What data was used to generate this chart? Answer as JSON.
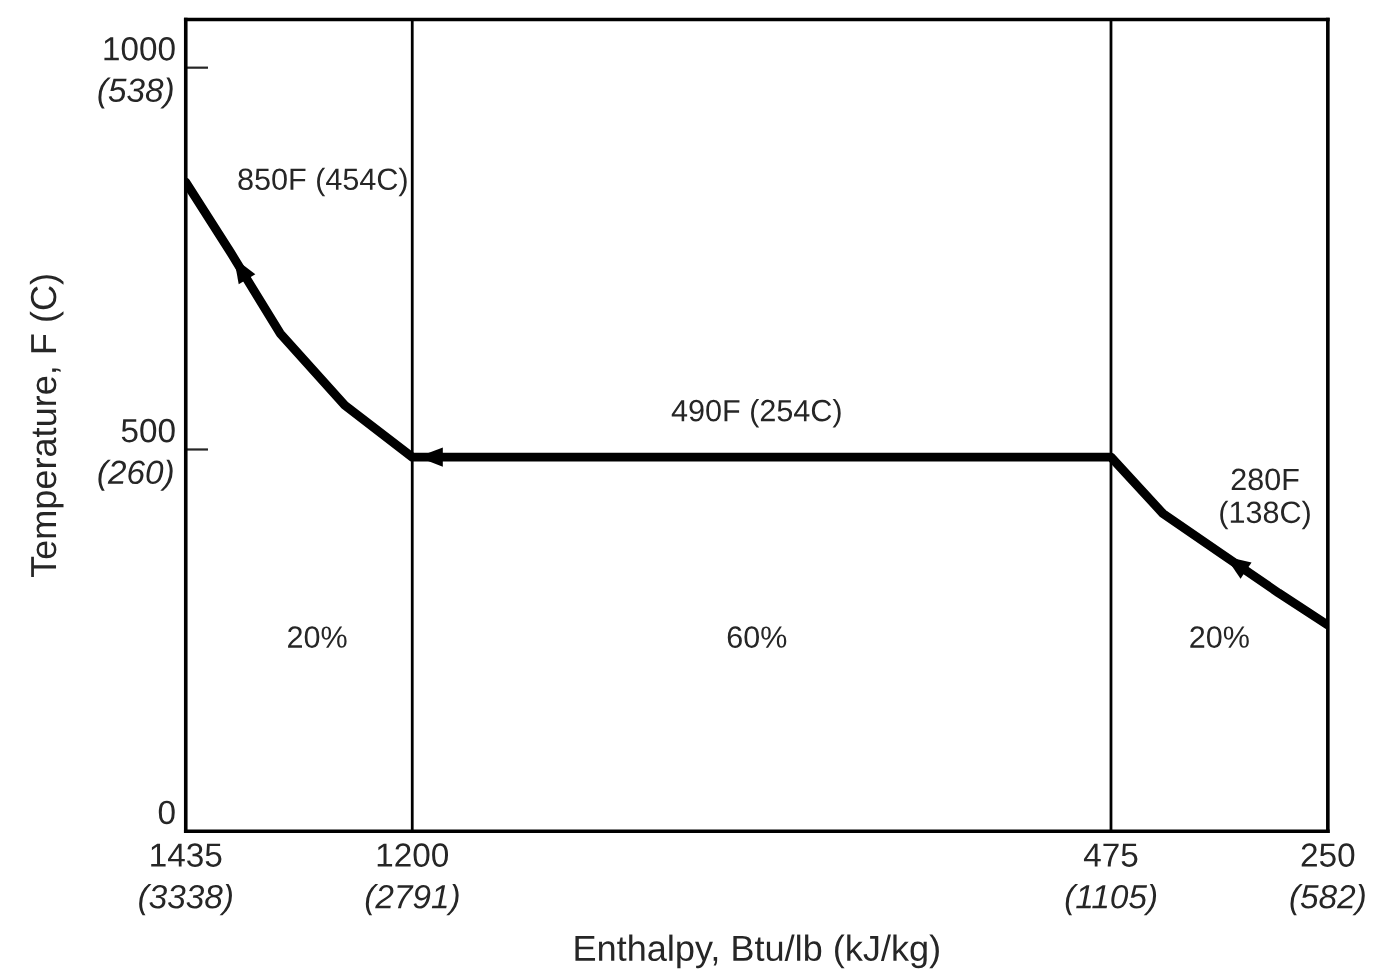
{
  "chart_data": {
    "type": "line",
    "xlabel": "Enthalpy, Btu/lb (kJ/kg)",
    "y2label": "Temperature, F (C)",
    "series": [
      {
        "color": "#000000",
        "x": [
          1435,
          1388,
          1337,
          1270,
          1200,
          475,
          421,
          361,
          301,
          250
        ],
        "values": [
          850,
          757,
          652,
          558,
          490,
          490,
          416,
          364,
          312,
          270
        ]
      }
    ],
    "xlim": [
      1435,
      250
    ],
    "ylim": [
      0,
      1063
    ],
    "xticks": [
      1435,
      1200,
      475,
      250
    ],
    "yticks": [
      0,
      500,
      1000
    ],
    "x2lim": [
      3338,
      582
    ],
    "x2ticks": [
      {
        "value": 3338,
        "label": "(3338)"
      },
      {
        "value": 2791,
        "label": "(2791)"
      },
      {
        "value": 1105,
        "label": "(1105)"
      },
      {
        "value": 582,
        "label": "(582)"
      }
    ],
    "y2lim": [
      -17.8,
      572.8
    ],
    "y2ticks": [
      {
        "value": 260,
        "label": "(260)"
      },
      {
        "value": 538,
        "label": "(538)"
      }
    ],
    "ref_lines": [
      {
        "axis": "x",
        "value": 1200,
        "color": "#000000"
      },
      {
        "axis": "x",
        "value": 475,
        "color": "#000000"
      }
    ],
    "annotations": [
      "850F (454C)",
      "490F (254C)",
      "280F\n(138C)",
      "20%",
      "60%",
      "20%"
    ],
    "grid": false,
    "marker": "none",
    "line_style": "solid",
    "legend": false
  }
}
